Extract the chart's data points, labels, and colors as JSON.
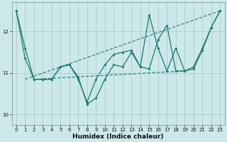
{
  "xlabel": "Humidex (Indice chaleur)",
  "bg_color": "#cce8ea",
  "grid_color": "#aacccc",
  "line_color": "#1a7a6e",
  "xlim": [
    -0.5,
    23.5
  ],
  "ylim": [
    9.75,
    12.7
  ],
  "yticks": [
    10,
    11,
    12
  ],
  "xticks": [
    0,
    1,
    2,
    3,
    4,
    5,
    6,
    7,
    8,
    9,
    10,
    11,
    12,
    13,
    14,
    15,
    16,
    17,
    18,
    19,
    20,
    21,
    22,
    23
  ],
  "series_main": [
    12.5,
    11.6,
    10.85,
    10.85,
    10.85,
    11.15,
    11.2,
    10.85,
    10.3,
    10.85,
    11.2,
    11.45,
    11.5,
    11.55,
    11.15,
    12.4,
    11.6,
    11.05,
    11.6,
    11.05,
    11.15,
    11.6,
    12.1,
    12.5
  ],
  "series_jagged": [
    12.5,
    11.35,
    10.85,
    10.85,
    10.85,
    11.15,
    11.2,
    10.9,
    10.25,
    10.4,
    10.85,
    11.2,
    11.15,
    11.5,
    11.15,
    11.1,
    11.8,
    12.15,
    11.05,
    11.05,
    11.1,
    11.55,
    12.1,
    12.5
  ],
  "trend_start_x": 1,
  "trend_start_y": 10.85,
  "trend_end_x": 23,
  "trend_end_y": 12.5,
  "flat_start_x": 2,
  "flat_start_y": 10.85,
  "flat_end_x": 19,
  "flat_end_y": 11.05
}
